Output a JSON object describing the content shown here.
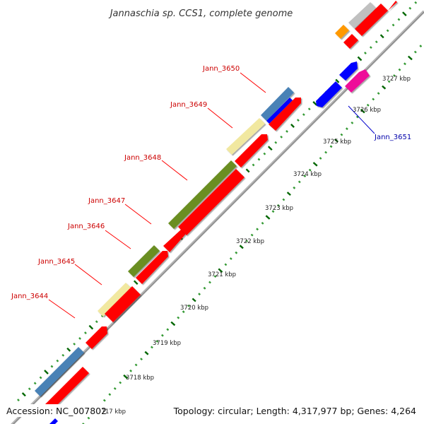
{
  "title": "Jannaschia sp. CCS1, complete genome",
  "footer": {
    "accession": "Accession: NC_007802",
    "topology": "Topology: circular; Length: 4,317,977 bp; Genes: 4,264"
  },
  "colors": {
    "red": "#ff0000",
    "steelblue": "#4a82b6",
    "khaki": "#f1e8a0",
    "olive": "#6b8e23",
    "blue": "#0000ff",
    "magenta": "#ee1199",
    "orange": "#ff9900",
    "silver": "#c0c0c0",
    "gc_dark": "#006600",
    "gc_green": "#339933",
    "backbone": "#999999"
  },
  "gene_labels": [
    {
      "name": "Jann_3650",
      "color": "#cc0000"
    },
    {
      "name": "Jann_3649",
      "color": "#cc0000"
    },
    {
      "name": "Jann_3648",
      "color": "#cc0000"
    },
    {
      "name": "Jann_3647",
      "color": "#cc0000"
    },
    {
      "name": "Jann_3646",
      "color": "#cc0000"
    },
    {
      "name": "Jann_3645",
      "color": "#cc0000"
    },
    {
      "name": "Jann_3644",
      "color": "#cc0000"
    },
    {
      "name": "Jann_3651",
      "color": "#0000aa"
    }
  ],
  "kbp_labels": [
    "3727 kbp",
    "3726 kbp",
    "3725 kbp",
    "3724 kbp",
    "3723 kbp",
    "3722 kbp",
    "3721 kbp",
    "3720 kbp",
    "3719 kbp",
    "3718 kbp",
    "3717 kbp"
  ]
}
